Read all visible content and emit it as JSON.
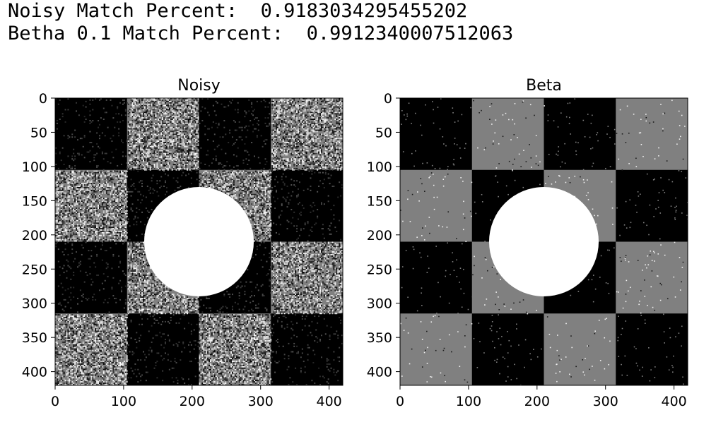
{
  "output": {
    "line1": "Noisy Match Percent:  0.9183034295455202",
    "line2": "Betha 0.1 Match Percent:  0.9912340007512063"
  },
  "chart_data": [
    {
      "type": "image",
      "title": "Noisy",
      "xlabel": "",
      "ylabel": "",
      "xlim": [
        0,
        420
      ],
      "ylim": [
        420,
        0
      ],
      "xticks": [
        0,
        100,
        200,
        300,
        400
      ],
      "yticks": [
        0,
        50,
        100,
        150,
        200,
        250,
        300,
        350,
        400
      ],
      "image_size": [
        420,
        420
      ],
      "checkerboard": {
        "square_size": 105,
        "grid": 4,
        "light_value": 0.5,
        "dark_value": 0.0,
        "top_left": "dark"
      },
      "circle": {
        "center": [
          210,
          210
        ],
        "radius": 80,
        "value": 1.0
      },
      "noise": "heavy salt-and-pepper (per-pixel random)",
      "colormap": "gray",
      "grid": false
    },
    {
      "type": "image",
      "title": "Beta",
      "xlabel": "",
      "ylabel": "",
      "xlim": [
        0,
        420
      ],
      "ylim": [
        420,
        0
      ],
      "xticks": [
        0,
        100,
        200,
        300,
        400
      ],
      "yticks": [
        0,
        50,
        100,
        150,
        200,
        250,
        300,
        350,
        400
      ],
      "image_size": [
        420,
        420
      ],
      "checkerboard": {
        "square_size": 105,
        "grid": 4,
        "light_value": 0.5,
        "dark_value": 0.0,
        "top_left": "dark"
      },
      "circle": {
        "center": [
          210,
          210
        ],
        "radius": 80,
        "value": 1.0
      },
      "noise": "sparse speckles",
      "colormap": "gray",
      "grid": false
    }
  ]
}
